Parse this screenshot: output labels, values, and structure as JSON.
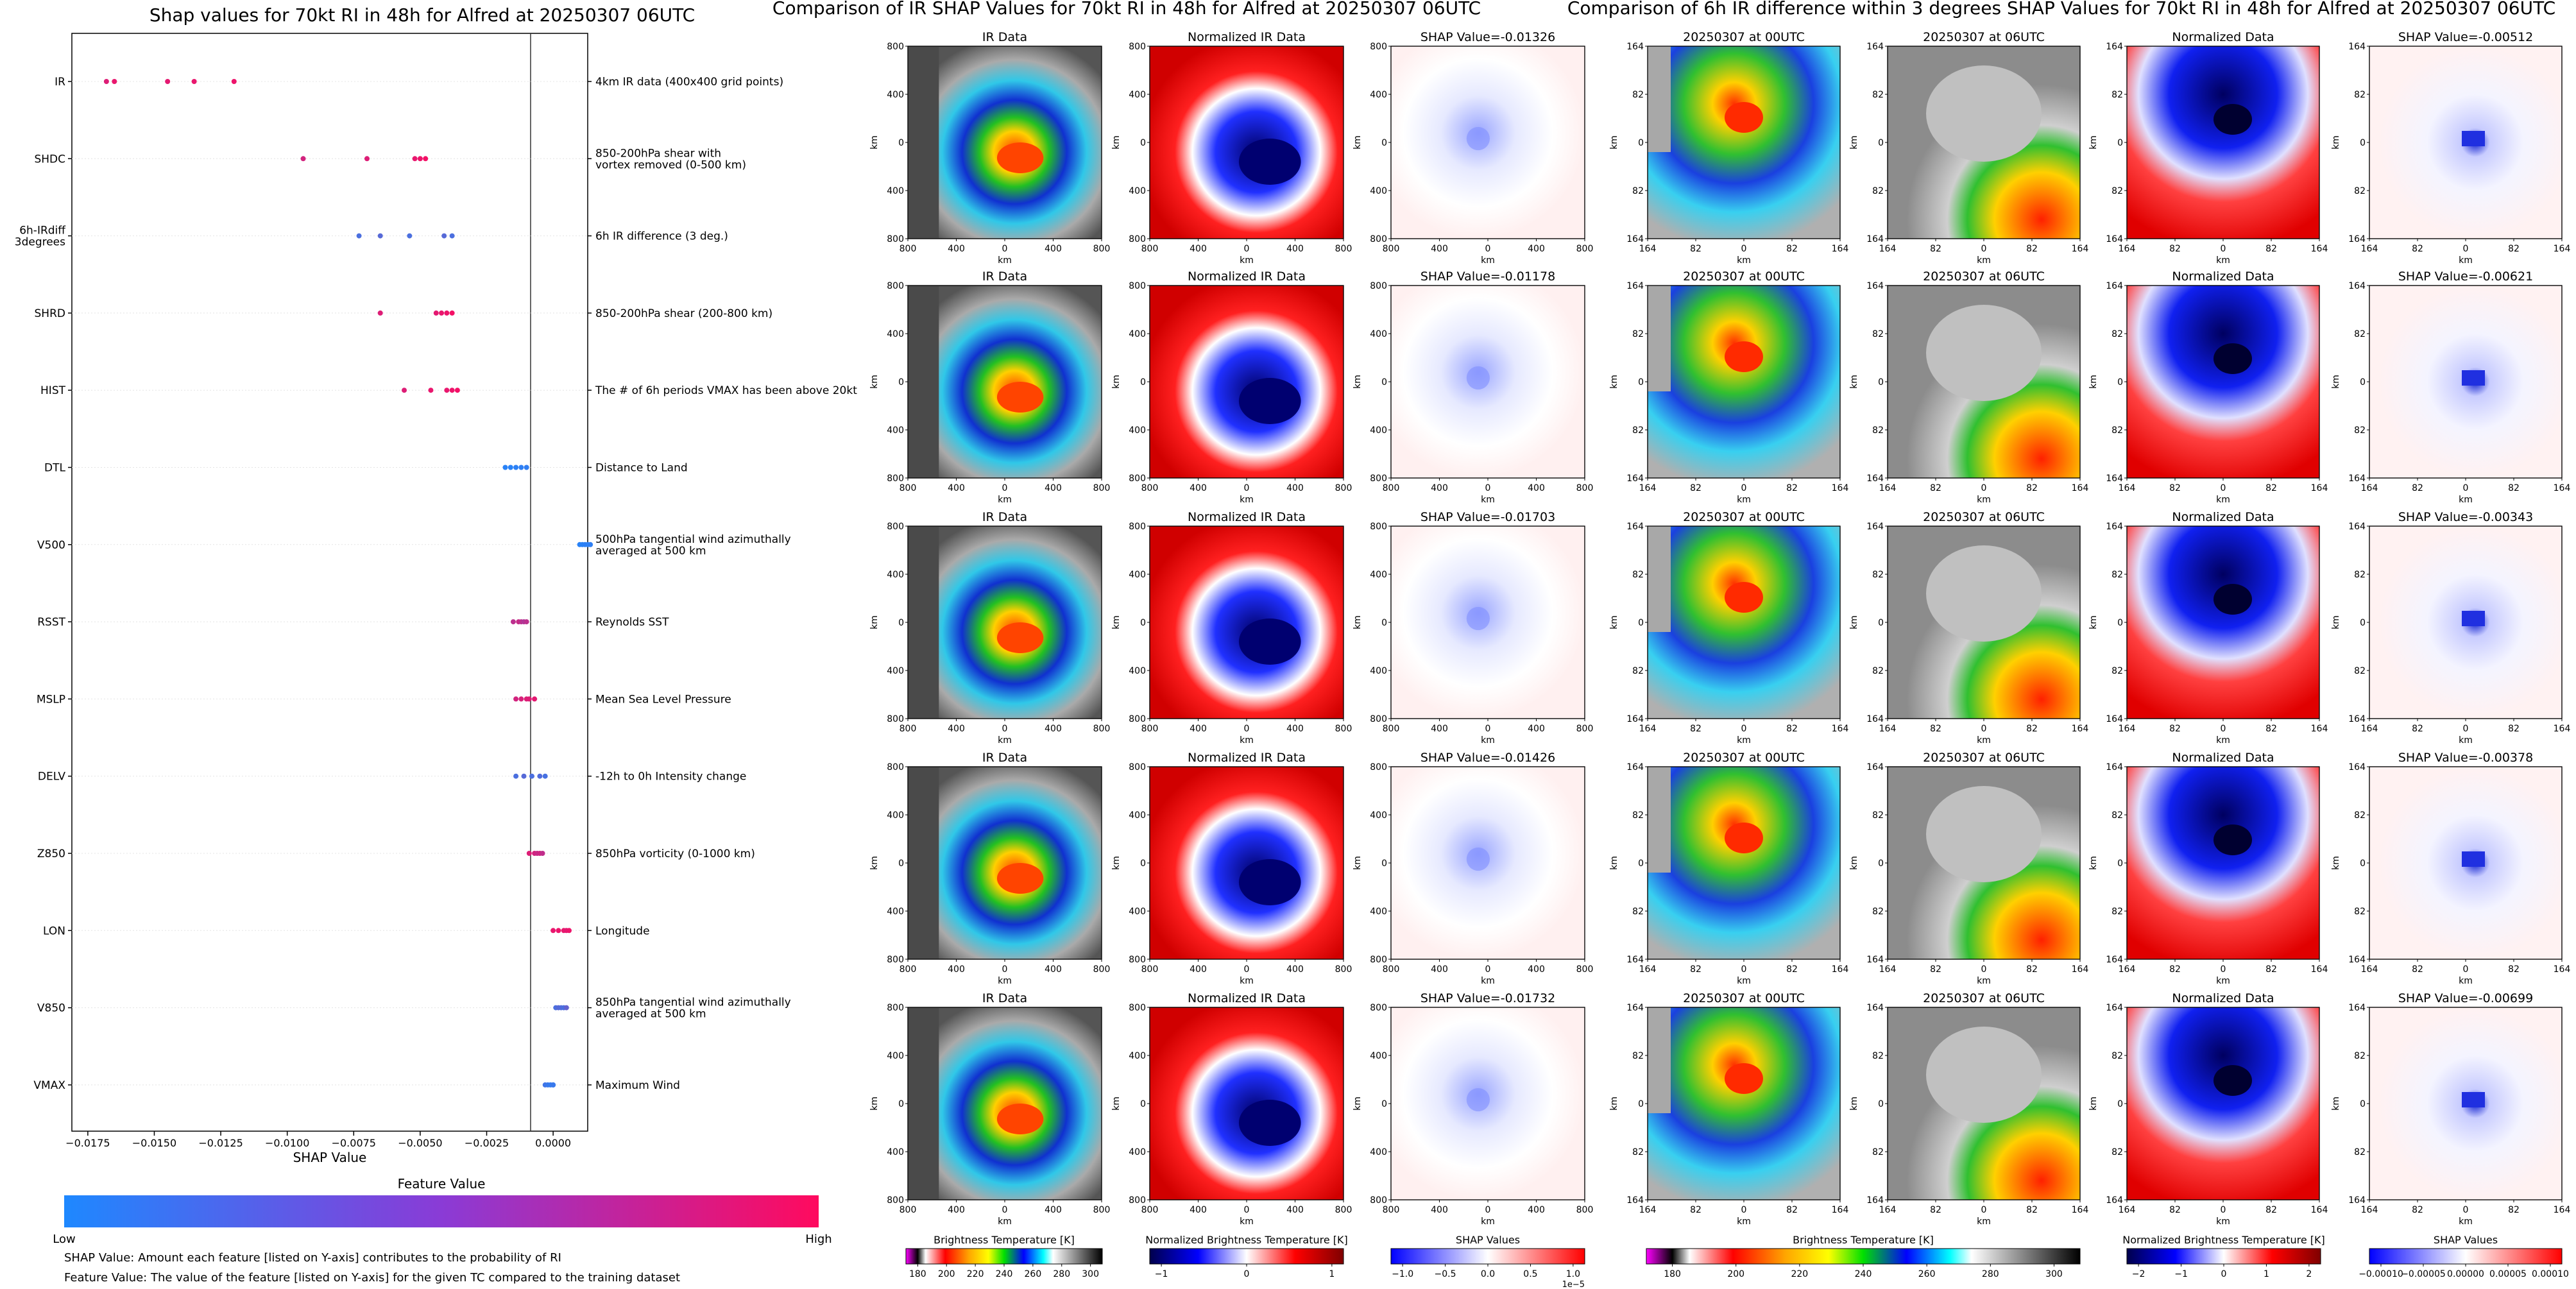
{
  "left_panel": {
    "title": "Shap values for 70kt RI in 48h for Alfred at 20250307 06UTC",
    "x_axis_label": "SHAP Value",
    "x_ticks": [
      "−0.0175",
      "−0.0150",
      "−0.0125",
      "−0.0100",
      "−0.0075",
      "−0.0050",
      "−0.0025",
      "0.0000"
    ],
    "colorbar_title": "Feature Value",
    "colorbar_low": "Low",
    "colorbar_high": "High",
    "footnote_1": "SHAP Value: Amount each feature [listed on Y-axis] contributes to the probability of RI",
    "footnote_2": "Feature Value: The value of the feature [listed on Y-axis] for the given TC compared to the training dataset",
    "colors": {
      "low": "#1e88ff",
      "high": "#ff0a5e"
    }
  },
  "chart_data": {
    "type": "scatter",
    "title": "Shap values for 70kt RI in 48h for Alfred at 20250307 06UTC",
    "xlabel": "SHAP Value",
    "xlim": [
      -0.0181,
      0.0013
    ],
    "features": [
      {
        "name": "IR",
        "description": "4km IR data (400x400 grid points)",
        "points": [
          {
            "x": -0.0168,
            "v": 0.85
          },
          {
            "x": -0.0165,
            "v": 0.9
          },
          {
            "x": -0.0145,
            "v": 0.88
          },
          {
            "x": -0.0135,
            "v": 0.9
          },
          {
            "x": -0.012,
            "v": 0.92
          }
        ]
      },
      {
        "name": "SHDC",
        "description": "850-200hPa shear with\nvortex removed (0-500 km)",
        "points": [
          {
            "x": -0.0094,
            "v": 0.8
          },
          {
            "x": -0.007,
            "v": 0.85
          },
          {
            "x": -0.0052,
            "v": 0.9
          },
          {
            "x": -0.005,
            "v": 0.92
          },
          {
            "x": -0.0048,
            "v": 0.95
          }
        ]
      },
      {
        "name": "6h-IRdiff\n3degrees",
        "description": "6h IR difference (3 deg.)",
        "points": [
          {
            "x": -0.0073,
            "v": 0.2
          },
          {
            "x": -0.0065,
            "v": 0.25
          },
          {
            "x": -0.0054,
            "v": 0.2
          },
          {
            "x": -0.0041,
            "v": 0.25
          },
          {
            "x": -0.0038,
            "v": 0.2
          }
        ]
      },
      {
        "name": "SHRD",
        "description": "850-200hPa shear (200-800 km)",
        "points": [
          {
            "x": -0.0065,
            "v": 0.85
          },
          {
            "x": -0.0042,
            "v": 0.9
          },
          {
            "x": -0.004,
            "v": 0.92
          },
          {
            "x": -0.0038,
            "v": 0.95
          },
          {
            "x": -0.0044,
            "v": 0.88
          }
        ]
      },
      {
        "name": "HIST",
        "description": "The # of 6h periods VMAX has been above 20kt",
        "points": [
          {
            "x": -0.0056,
            "v": 0.85
          },
          {
            "x": -0.0046,
            "v": 0.9
          },
          {
            "x": -0.004,
            "v": 0.9
          },
          {
            "x": -0.0038,
            "v": 0.92
          },
          {
            "x": -0.0036,
            "v": 0.95
          }
        ]
      },
      {
        "name": "DTL",
        "description": "Distance to Land",
        "points": [
          {
            "x": -0.0018,
            "v": 0.05
          },
          {
            "x": -0.0016,
            "v": 0.05
          },
          {
            "x": -0.0014,
            "v": 0.06
          },
          {
            "x": -0.0012,
            "v": 0.07
          },
          {
            "x": -0.001,
            "v": 0.08
          }
        ]
      },
      {
        "name": "V500",
        "description": "500hPa tangential wind azimuthally\naveraged at 500 km",
        "points": [
          {
            "x": 0.001,
            "v": 0.05
          },
          {
            "x": 0.0011,
            "v": 0.05
          },
          {
            "x": 0.0012,
            "v": 0.06
          },
          {
            "x": 0.0013,
            "v": 0.06
          },
          {
            "x": 0.0014,
            "v": 0.07
          }
        ]
      },
      {
        "name": "RSST",
        "description": "Reynolds SST",
        "points": [
          {
            "x": -0.0015,
            "v": 0.7
          },
          {
            "x": -0.0013,
            "v": 0.75
          },
          {
            "x": -0.0012,
            "v": 0.7
          },
          {
            "x": -0.0011,
            "v": 0.65
          },
          {
            "x": -0.001,
            "v": 0.7
          }
        ]
      },
      {
        "name": "MSLP",
        "description": "Mean Sea Level Pressure",
        "points": [
          {
            "x": -0.0014,
            "v": 0.8
          },
          {
            "x": -0.0012,
            "v": 0.82
          },
          {
            "x": -0.001,
            "v": 0.85
          },
          {
            "x": -0.0009,
            "v": 0.85
          },
          {
            "x": -0.0007,
            "v": 0.88
          }
        ]
      },
      {
        "name": "DELV",
        "description": "-12h to 0h Intensity change",
        "points": [
          {
            "x": -0.0014,
            "v": 0.2
          },
          {
            "x": -0.0011,
            "v": 0.25
          },
          {
            "x": -0.0008,
            "v": 0.2
          },
          {
            "x": -0.0005,
            "v": 0.22
          },
          {
            "x": -0.0003,
            "v": 0.18
          }
        ]
      },
      {
        "name": "Z850",
        "description": "850hPa vorticity (0-1000 km)",
        "points": [
          {
            "x": -0.0009,
            "v": 0.85
          },
          {
            "x": -0.0007,
            "v": 0.8
          },
          {
            "x": -0.0006,
            "v": 0.75
          },
          {
            "x": -0.0005,
            "v": 0.78
          },
          {
            "x": -0.0004,
            "v": 0.72
          }
        ]
      },
      {
        "name": "LON",
        "description": "Longitude",
        "points": [
          {
            "x": 0.0,
            "v": 0.9
          },
          {
            "x": 0.0002,
            "v": 0.92
          },
          {
            "x": 0.0004,
            "v": 0.9
          },
          {
            "x": 0.0005,
            "v": 0.88
          },
          {
            "x": 0.0006,
            "v": 0.92
          }
        ]
      },
      {
        "name": "V850",
        "description": "850hPa tangential wind azimuthally\naveraged at 500 km",
        "points": [
          {
            "x": 0.0001,
            "v": 0.2
          },
          {
            "x": 0.0002,
            "v": 0.25
          },
          {
            "x": 0.0003,
            "v": 0.22
          },
          {
            "x": 0.0004,
            "v": 0.2
          },
          {
            "x": 0.0005,
            "v": 0.3
          }
        ]
      },
      {
        "name": "VMAX",
        "description": "Maximum Wind",
        "points": [
          {
            "x": -0.0003,
            "v": 0.15
          },
          {
            "x": -0.0002,
            "v": 0.12
          },
          {
            "x": -0.0001,
            "v": 0.1
          },
          {
            "x": 0.0,
            "v": 0.1
          },
          {
            "x": 0.0,
            "v": 0.12
          }
        ]
      }
    ]
  },
  "middle_panel": {
    "title": "Comparison of IR SHAP Values for 70kt RI in 48h for Alfred at 20250307 06UTC",
    "col_titles": [
      "IR Data",
      "Normalized IR Data"
    ],
    "shap_titles": [
      "SHAP Value=-0.01326",
      "SHAP Value=-0.01178",
      "SHAP Value=-0.01703",
      "SHAP Value=-0.01426",
      "SHAP Value=-0.01732"
    ],
    "y_ticks": [
      "800",
      "400",
      "0",
      "400",
      "800"
    ],
    "x_ticks": [
      "800",
      "400",
      "0",
      "400",
      "800"
    ],
    "axis_label": "km",
    "cb1_label": "Brightness Temperature [K]",
    "cb1_ticks": [
      "180",
      "200",
      "220",
      "240",
      "260",
      "280",
      "300"
    ],
    "cb2_label": "Normalized Brightness Temperature [K]",
    "cb2_ticks": [
      "−1",
      "0",
      "1"
    ],
    "cb3_label": "SHAP Values",
    "cb3_ticks": [
      "−1.0",
      "−0.5",
      "0.0",
      "0.5",
      "1.0"
    ],
    "cb3_exp": "1e−5"
  },
  "right_panel": {
    "title": "Comparison of 6h IR difference within 3 degrees SHAP Values for 70kt RI in 48h for Alfred at 20250307 06UTC",
    "col_titles": [
      "20250307 at 00UTC",
      "20250307 at 06UTC",
      "Normalized Data"
    ],
    "shap_titles": [
      "SHAP Value=-0.00512",
      "SHAP Value=-0.00621",
      "SHAP Value=-0.00343",
      "SHAP Value=-0.00378",
      "SHAP Value=-0.00699"
    ],
    "y_ticks": [
      "164",
      "82",
      "0",
      "82",
      "164"
    ],
    "x_ticks": [
      "164",
      "82",
      "0",
      "82",
      "164"
    ],
    "axis_label": "km",
    "cb1_label": "Brightness Temperature [K]",
    "cb1_ticks": [
      "180",
      "200",
      "220",
      "240",
      "260",
      "280",
      "300"
    ],
    "cb2_label": "Normalized Brightness Temperature [K]",
    "cb2_ticks": [
      "−2",
      "−1",
      "0",
      "1",
      "2"
    ],
    "cb3_label": "SHAP Values",
    "cb3_ticks": [
      "−0.00010",
      "−0.00005",
      "0.00000",
      "0.00005",
      "0.00010"
    ]
  }
}
